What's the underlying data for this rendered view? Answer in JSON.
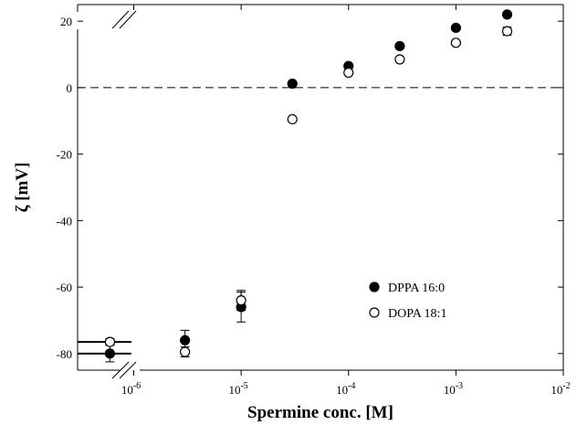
{
  "chart_data": {
    "type": "scatter",
    "title": "",
    "xlabel": "Spermine conc. [M]",
    "ylabel": "ζ [mV]",
    "x_scale": "log",
    "xlim": [
      3e-07,
      0.01
    ],
    "ylim": [
      -85,
      25
    ],
    "x_ticks": [
      {
        "value": 1e-06,
        "base": "10",
        "exp": "-6"
      },
      {
        "value": 1e-05,
        "base": "10",
        "exp": "-5"
      },
      {
        "value": 0.0001,
        "base": "10",
        "exp": "-4"
      },
      {
        "value": 0.001,
        "base": "10",
        "exp": "-3"
      },
      {
        "value": 0.01,
        "base": "10",
        "exp": "-2"
      }
    ],
    "y_ticks": [
      {
        "value": 20,
        "label": "20"
      },
      {
        "value": 0,
        "label": "0"
      },
      {
        "value": -20,
        "label": "-20"
      },
      {
        "value": -40,
        "label": "-40"
      },
      {
        "value": -60,
        "label": "-60"
      },
      {
        "value": -80,
        "label": "-80"
      }
    ],
    "reference_line_y": 0,
    "axis_breaks": [
      "top-left",
      "bottom-left"
    ],
    "legend_position": "lower-right",
    "series": [
      {
        "name": "DPPA 16:0",
        "marker": "filled-circle",
        "color": "#000000",
        "points": [
          {
            "x": 6e-07,
            "y": -80,
            "err": 2.5,
            "xerr_low": 3e-07,
            "xerr_high": 9.5e-07
          },
          {
            "x": 3e-06,
            "y": -76,
            "err": 3
          },
          {
            "x": 1e-05,
            "y": -66,
            "err": 4.5
          },
          {
            "x": 3e-05,
            "y": 1.2,
            "err": 0.5
          },
          {
            "x": 0.0001,
            "y": 6.5,
            "err": 0.5
          },
          {
            "x": 0.0003,
            "y": 12.5,
            "err": 0.5
          },
          {
            "x": 0.001,
            "y": 18,
            "err": 0.5
          },
          {
            "x": 0.003,
            "y": 22,
            "err": 0.5
          }
        ]
      },
      {
        "name": "DOPA 18:1",
        "marker": "open-circle",
        "color": "#000000",
        "points": [
          {
            "x": 6e-07,
            "y": -76.5,
            "err": 1,
            "xerr_low": 3e-07,
            "xerr_high": 9.5e-07
          },
          {
            "x": 3e-06,
            "y": -79.5,
            "err": 1.5
          },
          {
            "x": 1e-05,
            "y": -64,
            "err": 3
          },
          {
            "x": 3e-05,
            "y": -9.5,
            "err": 0.5
          },
          {
            "x": 0.0001,
            "y": 4.5,
            "err": 0.5
          },
          {
            "x": 0.0003,
            "y": 8.5,
            "err": 0.5
          },
          {
            "x": 0.001,
            "y": 13.5,
            "err": 0.5
          },
          {
            "x": 0.003,
            "y": 17,
            "err": 1.2
          }
        ]
      }
    ]
  }
}
